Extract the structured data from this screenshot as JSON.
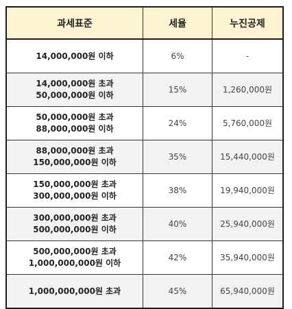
{
  "table": {
    "headers": [
      "과세표준",
      "세율",
      "누진공제"
    ],
    "rows": [
      {
        "bracket": [
          "14,000,000원 이하"
        ],
        "rate": "6%",
        "deduction": "-"
      },
      {
        "bracket": [
          "14,000,000원 초과",
          "50,000,000원 이하"
        ],
        "rate": "15%",
        "deduction": "1,260,000원"
      },
      {
        "bracket": [
          "50,000,000원 초과",
          "88,000,000원 이하"
        ],
        "rate": "24%",
        "deduction": "5,760,000원"
      },
      {
        "bracket": [
          "88,000,000원 초과",
          "150,000,000원 이하"
        ],
        "rate": "35%",
        "deduction": "15,440,000원"
      },
      {
        "bracket": [
          "150,000,000원 초과",
          "300,000,000원 이하"
        ],
        "rate": "38%",
        "deduction": "19,940,000원"
      },
      {
        "bracket": [
          "300,000,000원 초과",
          "500,000,000원 이하"
        ],
        "rate": "40%",
        "deduction": "25,940,000원"
      },
      {
        "bracket": [
          "500,000,000원 초과",
          "1,000,000,000원 이하"
        ],
        "rate": "42%",
        "deduction": "35,940,000원"
      },
      {
        "bracket": [
          "1,000,000,000원 초과"
        ],
        "rate": "45%",
        "deduction": "65,940,000원"
      }
    ]
  },
  "colors": {
    "header_bg": "#fdf3d0",
    "shaded_row_bg": "#f2f2f2",
    "border": "#1a1a1a"
  }
}
